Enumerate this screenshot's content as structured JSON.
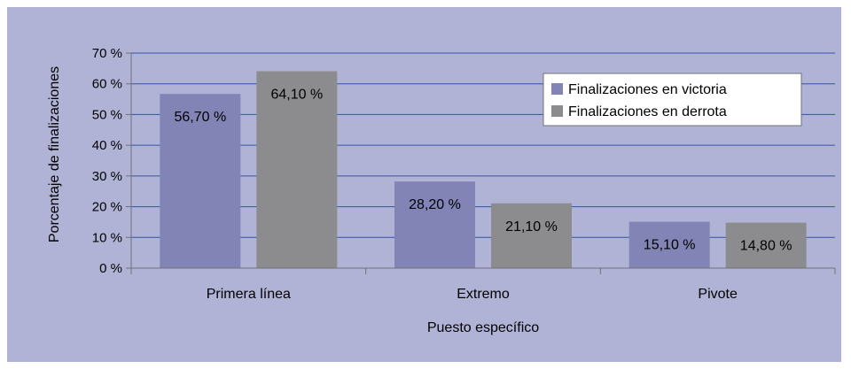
{
  "chart_data": {
    "type": "bar",
    "categories": [
      "Primera línea",
      "Extremo",
      "Pivote"
    ],
    "series": [
      {
        "name": "Finalizaciones en victoria",
        "values": [
          56.7,
          28.2,
          15.1
        ],
        "labels": [
          "56,70 %",
          "28,20 %",
          "15,10 %"
        ],
        "color": "#8184b5"
      },
      {
        "name": "Finalizaciones en derrota",
        "values": [
          64.1,
          21.1,
          14.8
        ],
        "labels": [
          "64,10 %",
          "21,10 %",
          "14,80 %"
        ],
        "color": "#8c8c8e"
      }
    ],
    "xlabel": "Puesto específico",
    "ylabel": "Porcentaje de finalizaciones",
    "ylim": [
      0,
      70
    ],
    "yticks": [
      0,
      10,
      20,
      30,
      40,
      50,
      60,
      70
    ],
    "ytick_labels": [
      "0 %",
      "10 %",
      "20 %",
      "30 %",
      "40 %",
      "50 %",
      "60 %",
      "70 %"
    ],
    "grid": true,
    "legend_position": "top-right",
    "colors": {
      "background": "#b1b3d6",
      "gridline": "#2e55a6",
      "axis": "#6f7177"
    }
  }
}
